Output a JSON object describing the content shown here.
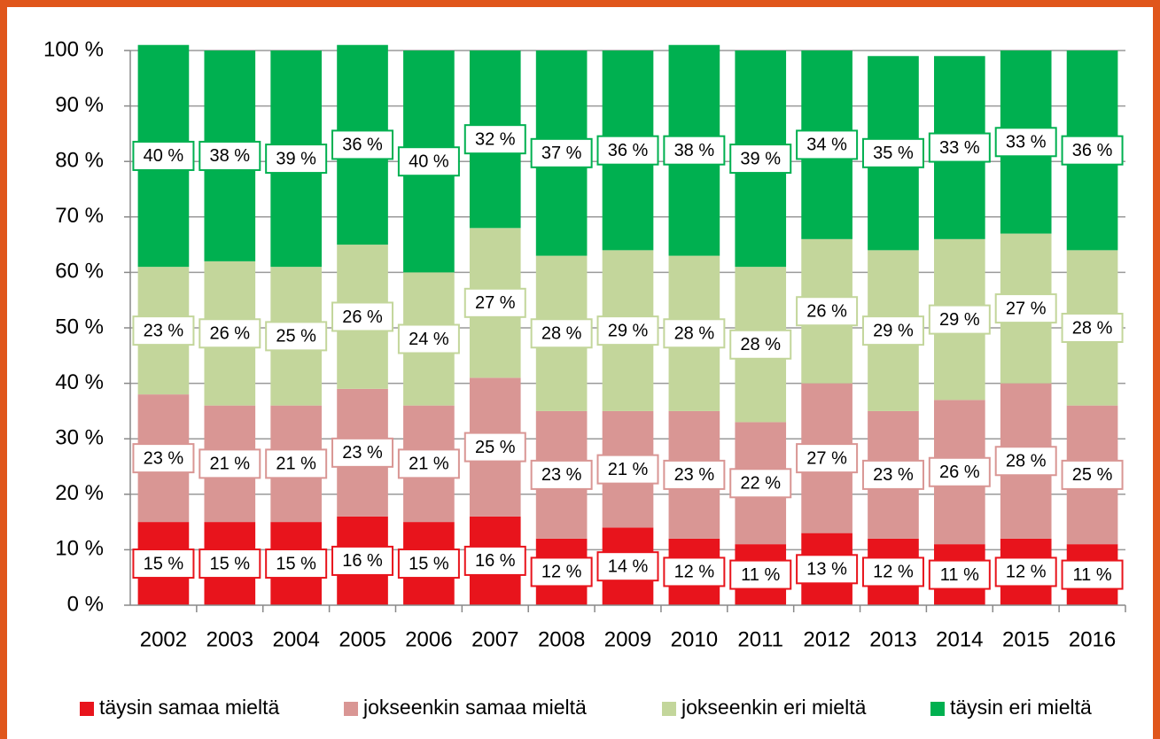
{
  "chart_data": {
    "type": "stacked_bar",
    "categories": [
      "2002",
      "2003",
      "2004",
      "2005",
      "2006",
      "2007",
      "2008",
      "2009",
      "2010",
      "2011",
      "2012",
      "2013",
      "2014",
      "2015",
      "2016"
    ],
    "series": [
      {
        "name": "täysin samaa mieltä",
        "color": "#e8141c",
        "values": [
          15,
          15,
          15,
          16,
          15,
          16,
          12,
          14,
          12,
          11,
          13,
          12,
          11,
          12,
          11
        ],
        "value_labels": [
          "15 %",
          "15 %",
          "15 %",
          "16 %",
          "15 %",
          "16 %",
          "12 %",
          "14 %",
          "12 %",
          "11 %",
          "13 %",
          "12 %",
          "11 %",
          "12 %",
          "11 %"
        ]
      },
      {
        "name": "jokseenkin samaa mieltä",
        "color": "#d99694",
        "values": [
          23,
          21,
          21,
          23,
          21,
          25,
          23,
          21,
          23,
          22,
          27,
          23,
          26,
          28,
          25
        ],
        "value_labels": [
          "23 %",
          "21 %",
          "21 %",
          "23 %",
          "21 %",
          "25 %",
          "23 %",
          "21 %",
          "23 %",
          "22 %",
          "27 %",
          "23 %",
          "26 %",
          "28 %",
          "25 %"
        ]
      },
      {
        "name": "jokseenkin eri mieltä",
        "color": "#c3d69b",
        "values": [
          23,
          26,
          25,
          26,
          24,
          27,
          28,
          29,
          28,
          28,
          26,
          29,
          29,
          27,
          28
        ],
        "value_labels": [
          "23 %",
          "26 %",
          "25 %",
          "26 %",
          "24 %",
          "27 %",
          "28 %",
          "29 %",
          "28 %",
          "28 %",
          "26 %",
          "29 %",
          "29 %",
          "27 %",
          "28 %"
        ]
      },
      {
        "name": "täysin eri mieltä",
        "color": "#00b050",
        "values": [
          40,
          38,
          39,
          36,
          40,
          32,
          37,
          36,
          38,
          39,
          34,
          35,
          33,
          33,
          36
        ],
        "value_labels": [
          "40 %",
          "38 %",
          "39 %",
          "36 %",
          "40 %",
          "32 %",
          "37 %",
          "36 %",
          "38 %",
          "39 %",
          "34 %",
          "35 %",
          "33 %",
          "33 %",
          "36 %"
        ]
      }
    ],
    "ylim": [
      0,
      100
    ],
    "yticks": [
      {
        "value": 0,
        "label": "0 %"
      },
      {
        "value": 10,
        "label": "10 %"
      },
      {
        "value": 20,
        "label": "20 %"
      },
      {
        "value": 30,
        "label": "30 %"
      },
      {
        "value": 40,
        "label": "40 %"
      },
      {
        "value": 50,
        "label": "50 %"
      },
      {
        "value": 60,
        "label": "60 %"
      },
      {
        "value": 70,
        "label": "70 %"
      },
      {
        "value": 80,
        "label": "80 %"
      },
      {
        "value": 90,
        "label": "90 %"
      },
      {
        "value": 100,
        "label": "100 %"
      }
    ],
    "grid": true,
    "legend": "bottom"
  }
}
